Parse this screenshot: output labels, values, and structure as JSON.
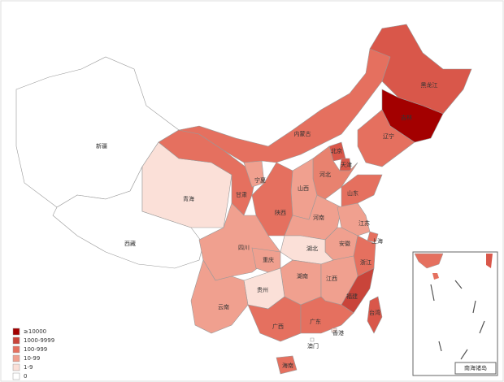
{
  "provinces": [
    {
      "name": "新疆",
      "color": "#ffffff"
    },
    {
      "name": "西藏",
      "color": "#ffffff"
    },
    {
      "name": "青海",
      "color": "#fbe0d8"
    },
    {
      "name": "甘肃",
      "color": "#e5705f"
    },
    {
      "name": "宁夏",
      "color": "#f0a08f"
    },
    {
      "name": "内蒙古",
      "color": "#e5705f"
    },
    {
      "name": "黑龙江",
      "color": "#d9574a"
    },
    {
      "name": "吉林",
      "color": "#a30000"
    },
    {
      "name": "辽宁",
      "color": "#e5705f"
    },
    {
      "name": "北京",
      "color": "#d9574a"
    },
    {
      "name": "天津",
      "color": "#d9574a"
    },
    {
      "name": "河北",
      "color": "#e8826f"
    },
    {
      "name": "山西",
      "color": "#f0a08f"
    },
    {
      "name": "山东",
      "color": "#e5705f"
    },
    {
      "name": "陕西",
      "color": "#e5705f"
    },
    {
      "name": "河南",
      "color": "#f0a08f"
    },
    {
      "name": "江苏",
      "color": "#f0a08f"
    },
    {
      "name": "上海",
      "color": "#e5705f"
    },
    {
      "name": "安徽",
      "color": "#f0a08f"
    },
    {
      "name": "湖北",
      "color": "#fbe0d8"
    },
    {
      "name": "四川",
      "color": "#f0a08f"
    },
    {
      "name": "重庆",
      "color": "#f0a08f"
    },
    {
      "name": "浙江",
      "color": "#e5705f"
    },
    {
      "name": "湖南",
      "color": "#f0a08f"
    },
    {
      "name": "江西",
      "color": "#f0a08f"
    },
    {
      "name": "贵州",
      "color": "#fbe0d8"
    },
    {
      "name": "云南",
      "color": "#f0a08f"
    },
    {
      "name": "福建",
      "color": "#c9443a"
    },
    {
      "name": "广西",
      "color": "#e5705f"
    },
    {
      "name": "广东",
      "color": "#e5705f"
    },
    {
      "name": "香港",
      "color": "#fbe0d8"
    },
    {
      "name": "澳门",
      "color": "#ffffff"
    },
    {
      "name": "海南",
      "color": "#e5705f"
    },
    {
      "name": "台湾",
      "color": "#d9574a"
    }
  ],
  "legend": [
    {
      "label": "≥10000",
      "color": "#a30000"
    },
    {
      "label": "1000-9999",
      "color": "#c9443a"
    },
    {
      "label": "100-999",
      "color": "#e5705f"
    },
    {
      "label": "10-99",
      "color": "#f0a08f"
    },
    {
      "label": "1-9",
      "color": "#fbe0d8"
    },
    {
      "label": "0",
      "color": "#ffffff"
    }
  ],
  "inset_label": "南海诸岛"
}
